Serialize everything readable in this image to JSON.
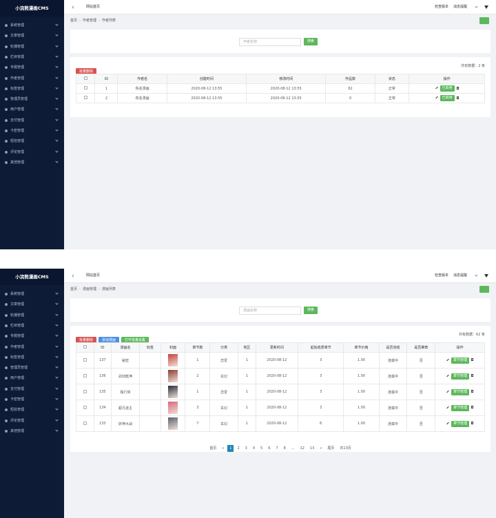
{
  "panels": [
    {
      "sidebar": {
        "title": "小浣熊漫画CMS",
        "menu": [
          "系统管理",
          "文章管理",
          "轮播管理",
          "栏目管理",
          "专题管理",
          "作者管理",
          "标签管理",
          "管理员管理",
          "用户管理",
          "支付管理",
          "卡密管理",
          "短信管理",
          "评论管理",
          "其他管理"
        ]
      },
      "topbar": {
        "home": "网站首页",
        "right": [
          "检查版本",
          "消息提醒"
        ]
      },
      "breadcrumb": [
        "首页",
        "作者管理",
        "作者列表"
      ],
      "search": {
        "placeholder": "作者名称",
        "button": "搜索"
      },
      "toolbar": {
        "buttons": [
          "批量删除"
        ],
        "total": "共有数据：2 条"
      },
      "table": {
        "headers": [
          "ID",
          "作者名",
          "创建时间",
          "修改时间",
          "作品数",
          "状态",
          "操作"
        ],
        "rows": [
          [
            1,
            "佚名漫画",
            "2020-08-12 13:55",
            "2020-08-12 13:55",
            62,
            "正常",
            "已启用"
          ],
          [
            2,
            "佚名漫画",
            "2020-08-12 13:55",
            "2020-08-12 13:55",
            0,
            "正常",
            "已启用"
          ]
        ]
      }
    },
    {
      "sidebar": {
        "title": "小浣熊漫画CMS",
        "menu": [
          "系统管理",
          "文章管理",
          "轮播管理",
          "栏目管理",
          "专题管理",
          "作者管理",
          "标签管理",
          "管理员管理",
          "用户管理",
          "支付管理",
          "卡密管理",
          "短信管理",
          "评论管理",
          "其他管理"
        ]
      },
      "topbar": {
        "home": "网站首页",
        "right": [
          "检查版本",
          "消息提醒"
        ]
      },
      "breadcrumb": [
        "首页",
        "漫画管理",
        "漫画列表"
      ],
      "search": {
        "placeholder": "漫画名称",
        "button": "搜索"
      },
      "toolbar": {
        "buttons": [
          "批量删除",
          "添加漫画",
          "打开批量采集"
        ],
        "total": "共有数据：62 条"
      },
      "table": {
        "headers": [
          "ID",
          "漫画名",
          "标签",
          "封面",
          "章节数",
          "分类",
          "地区",
          "更新时间",
          "起始收费章节",
          "章节价格",
          "是否完结",
          "是否推荐",
          "操作"
        ],
        "rows": [
          [
            137,
            "秘密",
            null,
            null,
            1,
            "恋爱",
            1,
            "2020-08-12",
            3,
            "1.00",
            "连载中",
            "否",
            "章节管理"
          ],
          [
            136,
            "武动乾坤",
            null,
            null,
            2,
            "玄幻",
            1,
            "2020-08-12",
            3,
            "1.00",
            "连载中",
            "否",
            "章节管理"
          ],
          [
            135,
            "独行侠",
            null,
            null,
            1,
            "恋爱",
            1,
            "2020-08-12",
            3,
            "1.00",
            "连载中",
            "否",
            "章节管理"
          ],
          [
            134,
            "超凡道主",
            null,
            null,
            3,
            "玄幻",
            1,
            "2020-08-12",
            3,
            "1.00",
            "连载中",
            "否",
            "章节管理"
          ],
          [
            133,
            "妖神大战",
            null,
            null,
            7,
            "玄幻",
            1,
            "2020-08-12",
            6,
            "1.00",
            "连载中",
            "否",
            "章节管理"
          ]
        ]
      },
      "pagination": {
        "items": [
          "首页",
          "«",
          1,
          2,
          3,
          4,
          5,
          6,
          7,
          8,
          "...",
          12,
          13,
          "»",
          "尾页"
        ],
        "summary": "共13页"
      }
    }
  ]
}
